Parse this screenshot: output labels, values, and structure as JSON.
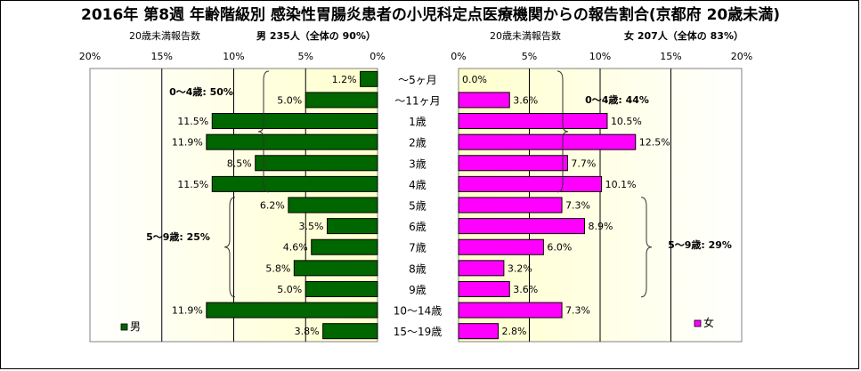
{
  "title": "2016年 第8週 年齢階級別 感染性胃腸炎患者の小児科定点医療機関からの報告割合(京都府 20歳未満)",
  "chart_data": {
    "type": "bar",
    "orientation": "horizontal-butterfly",
    "categories": [
      "～5ヶ月",
      "～11ヶ月",
      "1歳",
      "2歳",
      "3歳",
      "4歳",
      "5歳",
      "6歳",
      "7歳",
      "8歳",
      "9歳",
      "10～14歳",
      "15～19歳"
    ],
    "xlim": [
      0,
      20
    ],
    "grid": true,
    "series": [
      {
        "name": "男",
        "side": "left",
        "color": "#006600",
        "values": [
          1.2,
          5.0,
          11.5,
          11.9,
          8.5,
          11.5,
          6.2,
          3.5,
          4.6,
          5.8,
          5.0,
          11.9,
          3.8
        ],
        "value_labels": [
          "1.2%",
          "5.0%",
          "11.5%",
          "11.9%",
          "8.5%",
          "11.5%",
          "6.2%",
          "3.5%",
          "4.6%",
          "5.8%",
          "5.0%",
          "11.9%",
          "3.8%"
        ],
        "ticks": [
          "20%",
          "15%",
          "10%",
          "5%",
          "0%"
        ],
        "header_left": "20歳未満報告数",
        "header_right": "男 235人（全体の 90%）",
        "legend": "男",
        "groups": [
          {
            "label": "0～4歳: 50%",
            "from": 0,
            "to": 5
          },
          {
            "label": "5～9歳: 25%",
            "from": 6,
            "to": 10
          }
        ]
      },
      {
        "name": "女",
        "side": "right",
        "color": "#ff00ff",
        "values": [
          0.0,
          3.6,
          10.5,
          12.5,
          7.7,
          10.1,
          7.3,
          8.9,
          6.0,
          3.2,
          3.6,
          7.3,
          2.8
        ],
        "value_labels": [
          "0.0%",
          "3.6%",
          "10.5%",
          "12.5%",
          "7.7%",
          "10.1%",
          "7.3%",
          "8.9%",
          "6.0%",
          "3.2%",
          "3.6%",
          "7.3%",
          "2.8%"
        ],
        "ticks": [
          "0%",
          "5%",
          "10%",
          "15%",
          "20%"
        ],
        "header_left": "20歳未満報告数",
        "header_right": "女 207人（全体の 83%）",
        "legend": "女",
        "groups": [
          {
            "label": "0～4歳: 44%",
            "from": 0,
            "to": 5
          },
          {
            "label": "5～9歳: 29%",
            "from": 6,
            "to": 10
          }
        ]
      }
    ]
  }
}
